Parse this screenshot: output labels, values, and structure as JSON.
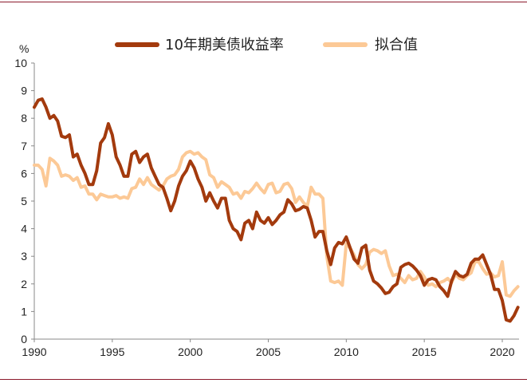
{
  "chart_data": {
    "type": "line",
    "y_unit": "%",
    "xlim": [
      1990,
      2021.5
    ],
    "ylim": [
      0,
      10
    ],
    "x_ticks": [
      "1990",
      "1995",
      "2000",
      "2005",
      "2010",
      "2015",
      "2020"
    ],
    "y_ticks": [
      "0",
      "1",
      "2",
      "3",
      "4",
      "5",
      "6",
      "7",
      "8",
      "9",
      "10"
    ],
    "legend_position": "top",
    "series": [
      {
        "name": "10年期美债收益率",
        "color": "#a33a0d",
        "points": [
          [
            1990.0,
            8.4
          ],
          [
            1990.25,
            8.65
          ],
          [
            1990.5,
            8.7
          ],
          [
            1990.75,
            8.4
          ],
          [
            1991.0,
            8.0
          ],
          [
            1991.25,
            8.1
          ],
          [
            1991.5,
            7.9
          ],
          [
            1991.75,
            7.35
          ],
          [
            1992.0,
            7.3
          ],
          [
            1992.25,
            7.4
          ],
          [
            1992.5,
            6.6
          ],
          [
            1992.75,
            6.7
          ],
          [
            1993.0,
            6.3
          ],
          [
            1993.25,
            6.0
          ],
          [
            1993.5,
            5.6
          ],
          [
            1993.75,
            5.6
          ],
          [
            1994.0,
            6.1
          ],
          [
            1994.25,
            7.1
          ],
          [
            1994.5,
            7.3
          ],
          [
            1994.75,
            7.8
          ],
          [
            1995.0,
            7.4
          ],
          [
            1995.25,
            6.6
          ],
          [
            1995.5,
            6.3
          ],
          [
            1995.75,
            5.9
          ],
          [
            1996.0,
            5.9
          ],
          [
            1996.25,
            6.7
          ],
          [
            1996.5,
            6.8
          ],
          [
            1996.75,
            6.4
          ],
          [
            1997.0,
            6.6
          ],
          [
            1997.25,
            6.7
          ],
          [
            1997.5,
            6.2
          ],
          [
            1997.75,
            5.9
          ],
          [
            1998.0,
            5.6
          ],
          [
            1998.25,
            5.5
          ],
          [
            1998.5,
            5.1
          ],
          [
            1998.75,
            4.65
          ],
          [
            1999.0,
            5.0
          ],
          [
            1999.25,
            5.55
          ],
          [
            1999.5,
            5.9
          ],
          [
            1999.75,
            6.1
          ],
          [
            2000.0,
            6.45
          ],
          [
            2000.25,
            6.2
          ],
          [
            2000.5,
            5.8
          ],
          [
            2000.75,
            5.5
          ],
          [
            2001.0,
            5.0
          ],
          [
            2001.25,
            5.3
          ],
          [
            2001.5,
            5.0
          ],
          [
            2001.75,
            4.75
          ],
          [
            2002.0,
            5.1
          ],
          [
            2002.25,
            5.1
          ],
          [
            2002.5,
            4.3
          ],
          [
            2002.75,
            4.0
          ],
          [
            2003.0,
            3.9
          ],
          [
            2003.25,
            3.6
          ],
          [
            2003.5,
            4.2
          ],
          [
            2003.75,
            4.3
          ],
          [
            2004.0,
            4.0
          ],
          [
            2004.25,
            4.6
          ],
          [
            2004.5,
            4.3
          ],
          [
            2004.75,
            4.2
          ],
          [
            2005.0,
            4.4
          ],
          [
            2005.25,
            4.15
          ],
          [
            2005.5,
            4.3
          ],
          [
            2005.75,
            4.5
          ],
          [
            2006.0,
            4.6
          ],
          [
            2006.25,
            5.05
          ],
          [
            2006.5,
            4.9
          ],
          [
            2006.75,
            4.65
          ],
          [
            2007.0,
            4.7
          ],
          [
            2007.25,
            4.8
          ],
          [
            2007.5,
            4.75
          ],
          [
            2007.75,
            4.3
          ],
          [
            2008.0,
            3.7
          ],
          [
            2008.25,
            3.9
          ],
          [
            2008.5,
            3.9
          ],
          [
            2008.75,
            3.2
          ],
          [
            2009.0,
            2.7
          ],
          [
            2009.25,
            3.3
          ],
          [
            2009.5,
            3.5
          ],
          [
            2009.75,
            3.45
          ],
          [
            2010.0,
            3.7
          ],
          [
            2010.25,
            3.3
          ],
          [
            2010.5,
            2.9
          ],
          [
            2010.75,
            2.75
          ],
          [
            2011.0,
            3.3
          ],
          [
            2011.25,
            3.4
          ],
          [
            2011.5,
            2.5
          ],
          [
            2011.75,
            2.1
          ],
          [
            2012.0,
            2.0
          ],
          [
            2012.25,
            1.85
          ],
          [
            2012.5,
            1.65
          ],
          [
            2012.75,
            1.7
          ],
          [
            2013.0,
            1.9
          ],
          [
            2013.25,
            2.0
          ],
          [
            2013.5,
            2.6
          ],
          [
            2013.75,
            2.7
          ],
          [
            2014.0,
            2.75
          ],
          [
            2014.25,
            2.65
          ],
          [
            2014.5,
            2.5
          ],
          [
            2014.75,
            2.3
          ],
          [
            2015.0,
            1.95
          ],
          [
            2015.25,
            2.15
          ],
          [
            2015.5,
            2.2
          ],
          [
            2015.75,
            2.15
          ],
          [
            2016.0,
            1.9
          ],
          [
            2016.25,
            1.75
          ],
          [
            2016.5,
            1.55
          ],
          [
            2016.75,
            2.1
          ],
          [
            2017.0,
            2.45
          ],
          [
            2017.25,
            2.3
          ],
          [
            2017.5,
            2.25
          ],
          [
            2017.75,
            2.35
          ],
          [
            2018.0,
            2.75
          ],
          [
            2018.25,
            2.9
          ],
          [
            2018.5,
            2.9
          ],
          [
            2018.75,
            3.05
          ],
          [
            2019.0,
            2.7
          ],
          [
            2019.25,
            2.35
          ],
          [
            2019.5,
            1.8
          ],
          [
            2019.75,
            1.8
          ],
          [
            2020.0,
            1.4
          ],
          [
            2020.25,
            0.7
          ],
          [
            2020.5,
            0.65
          ],
          [
            2020.75,
            0.85
          ],
          [
            2021.0,
            1.15
          ]
        ]
      },
      {
        "name": "拟合值",
        "color": "#fcc996",
        "points": [
          [
            1990.0,
            6.3
          ],
          [
            1990.25,
            6.3
          ],
          [
            1990.5,
            6.15
          ],
          [
            1990.75,
            5.55
          ],
          [
            1991.0,
            6.55
          ],
          [
            1991.25,
            6.45
          ],
          [
            1991.5,
            6.3
          ],
          [
            1991.75,
            5.9
          ],
          [
            1992.0,
            5.95
          ],
          [
            1992.25,
            5.9
          ],
          [
            1992.5,
            5.75
          ],
          [
            1992.75,
            5.85
          ],
          [
            1993.0,
            5.5
          ],
          [
            1993.25,
            5.55
          ],
          [
            1993.5,
            5.25
          ],
          [
            1993.75,
            5.25
          ],
          [
            1994.0,
            5.05
          ],
          [
            1994.25,
            5.25
          ],
          [
            1994.5,
            5.2
          ],
          [
            1994.75,
            5.15
          ],
          [
            1995.0,
            5.15
          ],
          [
            1995.25,
            5.2
          ],
          [
            1995.5,
            5.1
          ],
          [
            1995.75,
            5.15
          ],
          [
            1996.0,
            5.1
          ],
          [
            1996.25,
            5.45
          ],
          [
            1996.5,
            5.5
          ],
          [
            1996.75,
            5.8
          ],
          [
            1997.0,
            5.6
          ],
          [
            1997.25,
            5.85
          ],
          [
            1997.5,
            5.6
          ],
          [
            1997.75,
            5.5
          ],
          [
            1998.0,
            5.4
          ],
          [
            1998.25,
            5.55
          ],
          [
            1998.5,
            5.8
          ],
          [
            1998.75,
            5.9
          ],
          [
            1999.0,
            5.95
          ],
          [
            1999.25,
            6.15
          ],
          [
            1999.5,
            6.6
          ],
          [
            1999.75,
            6.75
          ],
          [
            2000.0,
            6.8
          ],
          [
            2000.25,
            6.7
          ],
          [
            2000.5,
            6.75
          ],
          [
            2000.75,
            6.6
          ],
          [
            2001.0,
            6.5
          ],
          [
            2001.25,
            5.95
          ],
          [
            2001.5,
            5.85
          ],
          [
            2001.75,
            5.5
          ],
          [
            2002.0,
            5.7
          ],
          [
            2002.25,
            5.6
          ],
          [
            2002.5,
            5.5
          ],
          [
            2002.75,
            5.25
          ],
          [
            2003.0,
            5.3
          ],
          [
            2003.25,
            5.1
          ],
          [
            2003.5,
            5.35
          ],
          [
            2003.75,
            5.3
          ],
          [
            2004.0,
            5.45
          ],
          [
            2004.25,
            5.65
          ],
          [
            2004.5,
            5.45
          ],
          [
            2004.75,
            5.3
          ],
          [
            2005.0,
            5.6
          ],
          [
            2005.25,
            5.65
          ],
          [
            2005.5,
            5.3
          ],
          [
            2005.75,
            5.35
          ],
          [
            2006.0,
            5.6
          ],
          [
            2006.25,
            5.65
          ],
          [
            2006.5,
            5.45
          ],
          [
            2006.75,
            4.95
          ],
          [
            2007.0,
            5.15
          ],
          [
            2007.25,
            4.95
          ],
          [
            2007.5,
            4.8
          ],
          [
            2007.75,
            5.5
          ],
          [
            2008.0,
            5.25
          ],
          [
            2008.25,
            5.25
          ],
          [
            2008.5,
            5.1
          ],
          [
            2008.75,
            3.0
          ],
          [
            2009.0,
            2.1
          ],
          [
            2009.25,
            2.05
          ],
          [
            2009.5,
            2.1
          ],
          [
            2009.75,
            1.95
          ],
          [
            2010.0,
            3.45
          ],
          [
            2010.25,
            3.3
          ],
          [
            2010.5,
            3.05
          ],
          [
            2010.75,
            2.7
          ],
          [
            2011.0,
            2.55
          ],
          [
            2011.25,
            2.7
          ],
          [
            2011.5,
            3.15
          ],
          [
            2011.75,
            3.25
          ],
          [
            2012.0,
            3.2
          ],
          [
            2012.25,
            3.1
          ],
          [
            2012.5,
            3.2
          ],
          [
            2012.75,
            2.65
          ],
          [
            2013.0,
            2.3
          ],
          [
            2013.25,
            2.35
          ],
          [
            2013.5,
            2.2
          ],
          [
            2013.75,
            2.05
          ],
          [
            2014.0,
            2.3
          ],
          [
            2014.25,
            2.15
          ],
          [
            2014.5,
            2.2
          ],
          [
            2014.75,
            2.45
          ],
          [
            2015.0,
            2.25
          ],
          [
            2015.25,
            1.95
          ],
          [
            2015.5,
            2.0
          ],
          [
            2015.75,
            1.9
          ],
          [
            2016.0,
            2.05
          ],
          [
            2016.25,
            2.1
          ],
          [
            2016.5,
            2.2
          ],
          [
            2016.75,
            2.05
          ],
          [
            2017.0,
            2.35
          ],
          [
            2017.25,
            2.2
          ],
          [
            2017.5,
            2.15
          ],
          [
            2017.75,
            2.3
          ],
          [
            2018.0,
            2.4
          ],
          [
            2018.25,
            2.8
          ],
          [
            2018.5,
            2.8
          ],
          [
            2018.75,
            2.55
          ],
          [
            2019.0,
            2.35
          ],
          [
            2019.25,
            2.4
          ],
          [
            2019.5,
            2.25
          ],
          [
            2019.75,
            2.3
          ],
          [
            2020.0,
            2.8
          ],
          [
            2020.25,
            1.6
          ],
          [
            2020.5,
            1.55
          ],
          [
            2020.75,
            1.75
          ],
          [
            2021.0,
            1.9
          ]
        ]
      }
    ]
  }
}
